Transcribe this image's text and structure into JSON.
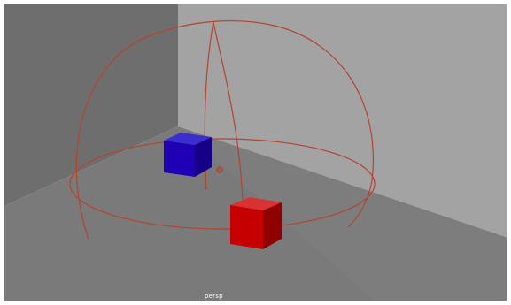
{
  "viewport": {
    "camera_label": "persp"
  },
  "scene": {
    "colors": {
      "left_wall": "#6f6f6f",
      "back_wall": "#a4a4a4",
      "floor": "#7b7b7b",
      "gizmo": "#b5462e",
      "blue_cube": "#1a00b8",
      "red_cube": "#c80000"
    },
    "objects": [
      {
        "name": "blue-cube",
        "color": "blue"
      },
      {
        "name": "red-cube",
        "color": "red"
      },
      {
        "name": "light-sphere-gizmo",
        "icon": "wireframe-sphere-icon"
      },
      {
        "name": "pivot-marker",
        "icon": "crosshair-icon"
      }
    ]
  }
}
